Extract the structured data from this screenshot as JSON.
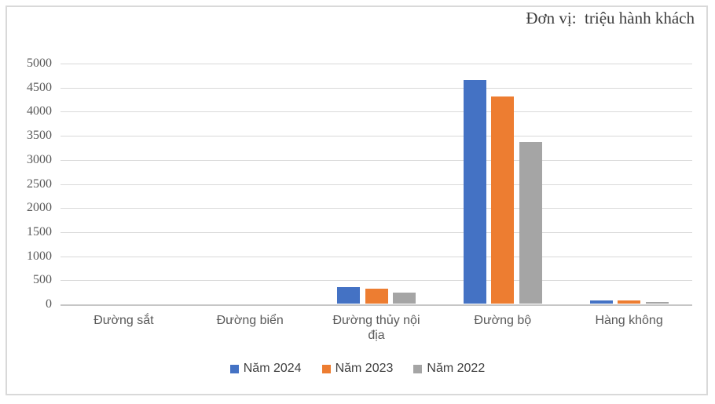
{
  "chart_data": {
    "type": "bar",
    "title": "Đơn vị:  triệu hành khách",
    "categories": [
      "Đường sắt",
      "Đường biển",
      "Đường thủy nội\nđịa",
      "Đường bộ",
      "Hàng không"
    ],
    "series": [
      {
        "name": "Năm 2024",
        "color": "#4472C4",
        "values": [
          0,
          0,
          350,
          4650,
          60
        ]
      },
      {
        "name": "Năm 2023",
        "color": "#ED7D31",
        "values": [
          0,
          0,
          310,
          4300,
          60
        ]
      },
      {
        "name": "Năm 2022",
        "color": "#A5A5A5",
        "values": [
          0,
          0,
          235,
          3350,
          40
        ]
      }
    ],
    "ylim": [
      0,
      5000
    ],
    "ytick_step": 500,
    "grid": true,
    "legend_position": "bottom",
    "colors": {
      "gridline": "#d9d9d9",
      "frame_border": "#d9d9d9",
      "axis_text": "#595959",
      "title_text": "#3d3d3d",
      "legend_text": "#404040"
    }
  }
}
